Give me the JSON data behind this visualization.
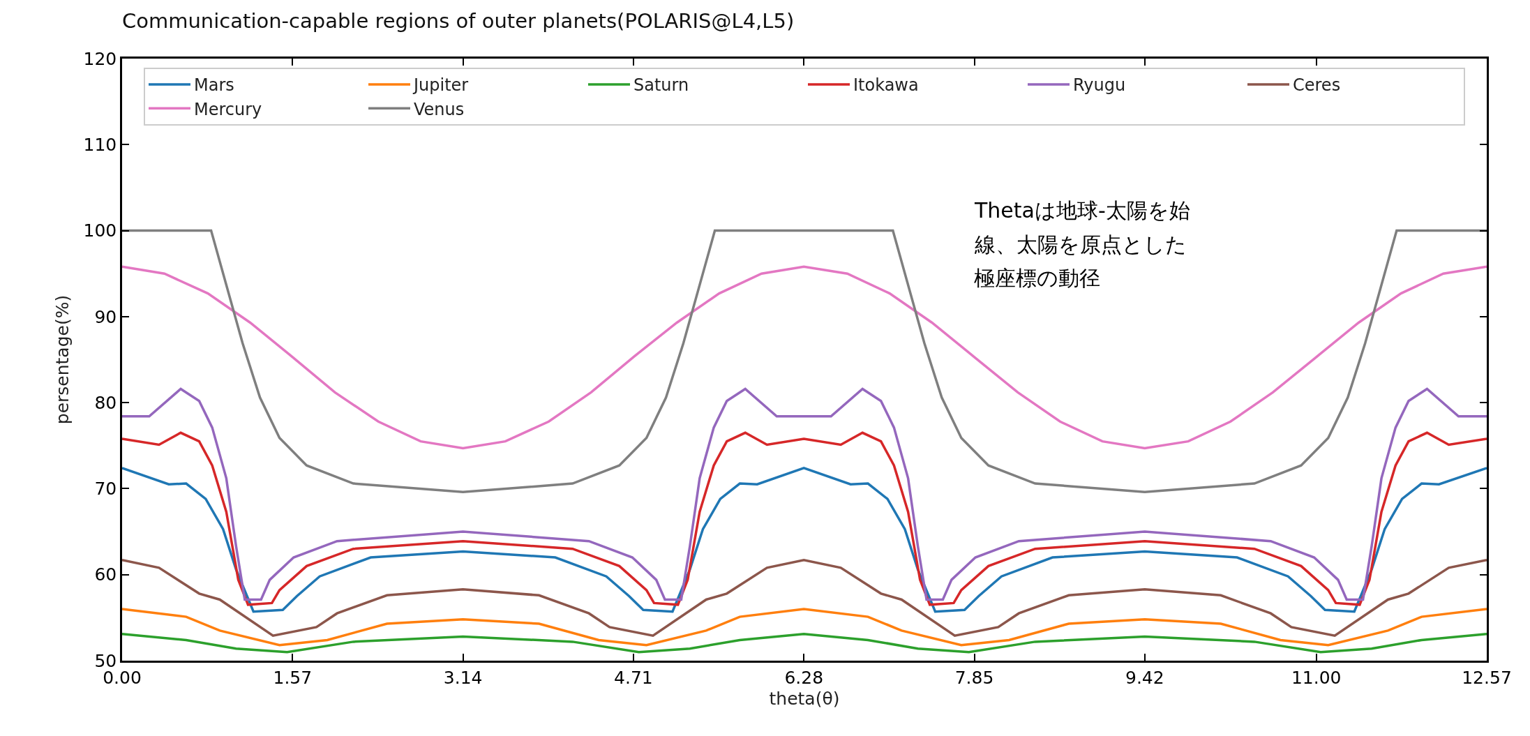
{
  "chart_data": {
    "type": "line",
    "title": "Communication-capable regions of outer planets(POLARIS@L4,L5)",
    "xlabel": "theta(θ)",
    "ylabel": "persentage(%)",
    "xlim": [
      0,
      12.57
    ],
    "xticks": [
      {
        "value": 0,
        "label": "0.00"
      },
      1.57,
      3.14,
      4.71,
      6.28,
      7.85,
      9.42,
      {
        "value": 11,
        "label": "11.00"
      },
      12.57
    ],
    "ylim": [
      50,
      120
    ],
    "yticks": [
      50,
      60,
      70,
      80,
      90,
      100,
      110,
      120
    ],
    "grid": false,
    "legend": "top",
    "marker": "none",
    "line_style": "solid",
    "annotations": [
      "Thetaは地球-太陽を始",
      "線、太陽を原点とした",
      "極座標の動径"
    ],
    "series": [
      {
        "name": "Mars",
        "color": "#1f77b4",
        "x": [
          0,
          0.43,
          0.59,
          0.77,
          0.93,
          1.05,
          1.21,
          1.48,
          1.61,
          1.82,
          2.29,
          3.14,
          3.99,
          4.46,
          4.67,
          4.8,
          5.07,
          5.23,
          5.35,
          5.51,
          5.69,
          5.85,
          6.28,
          6.71,
          6.87,
          7.05,
          7.21,
          7.33,
          7.49,
          7.76,
          7.89,
          8.1,
          8.57,
          9.42,
          10.27,
          10.74,
          10.95,
          11.08,
          11.35,
          11.51,
          11.63,
          11.79,
          11.97,
          12.13,
          12.57
        ],
        "values": [
          72.4,
          70.5,
          70.6,
          68.8,
          65.3,
          60.6,
          55.7,
          55.9,
          57.5,
          59.8,
          62.0,
          62.7,
          62.0,
          59.8,
          57.5,
          55.9,
          55.7,
          60.6,
          65.3,
          68.8,
          70.6,
          70.5,
          72.4,
          70.5,
          70.6,
          68.8,
          65.3,
          60.6,
          55.7,
          55.9,
          57.5,
          59.8,
          62.0,
          62.7,
          62.0,
          59.8,
          57.5,
          55.9,
          55.7,
          60.6,
          65.3,
          68.8,
          70.6,
          70.5,
          72.4
        ]
      },
      {
        "name": "Jupiter",
        "color": "#ff7f0e",
        "x": [
          0,
          0.59,
          0.9,
          1.45,
          1.89,
          2.44,
          3.14,
          3.84,
          4.39,
          4.83,
          5.38,
          5.69,
          6.28,
          6.87,
          7.18,
          7.73,
          8.17,
          8.72,
          9.42,
          10.12,
          10.67,
          11.11,
          11.66,
          11.97,
          12.57
        ],
        "values": [
          56.0,
          55.1,
          53.5,
          51.8,
          52.4,
          54.3,
          54.8,
          54.3,
          52.4,
          51.8,
          53.5,
          55.1,
          56.0,
          55.1,
          53.5,
          51.8,
          52.4,
          54.3,
          54.8,
          54.3,
          52.4,
          51.8,
          53.5,
          55.1,
          56.0
        ]
      },
      {
        "name": "Saturn",
        "color": "#2ca02c",
        "x": [
          0,
          0.59,
          1.05,
          1.52,
          2.13,
          3.14,
          4.15,
          4.76,
          5.23,
          5.69,
          6.28,
          6.87,
          7.33,
          7.8,
          8.41,
          9.42,
          10.43,
          11.04,
          11.51,
          11.97,
          12.57
        ],
        "values": [
          53.1,
          52.4,
          51.4,
          51.0,
          52.2,
          52.8,
          52.2,
          51.0,
          51.4,
          52.4,
          53.1,
          52.4,
          51.4,
          51.0,
          52.2,
          52.8,
          52.2,
          51.0,
          51.4,
          52.4,
          53.1
        ]
      },
      {
        "name": "Itokawa",
        "color": "#d62728",
        "x": [
          0,
          0.34,
          0.54,
          0.71,
          0.83,
          0.96,
          1.07,
          1.16,
          1.38,
          1.45,
          1.7,
          2.13,
          3.14,
          4.15,
          4.58,
          4.83,
          4.9,
          5.12,
          5.21,
          5.32,
          5.45,
          5.57,
          5.74,
          5.94,
          6.28,
          6.62,
          6.82,
          6.99,
          7.11,
          7.24,
          7.35,
          7.44,
          7.66,
          7.73,
          7.98,
          8.41,
          9.42,
          10.43,
          10.86,
          11.11,
          11.18,
          11.4,
          11.49,
          11.6,
          11.73,
          11.85,
          12.02,
          12.22,
          12.57
        ],
        "values": [
          75.8,
          75.1,
          76.5,
          75.5,
          72.7,
          67.3,
          59.4,
          56.5,
          56.7,
          58.2,
          61.0,
          63.0,
          63.9,
          63.0,
          61.0,
          58.2,
          56.7,
          56.5,
          59.4,
          67.3,
          72.7,
          75.5,
          76.5,
          75.1,
          75.8,
          75.1,
          76.5,
          75.5,
          72.7,
          67.3,
          59.4,
          56.5,
          56.7,
          58.2,
          61.0,
          63.0,
          63.9,
          63.0,
          61.0,
          58.2,
          56.7,
          56.5,
          59.4,
          67.3,
          72.7,
          75.5,
          76.5,
          75.1,
          75.8
        ]
      },
      {
        "name": "Ryugu",
        "color": "#9467bd",
        "x": [
          0,
          0.25,
          0.54,
          0.71,
          0.83,
          0.96,
          1.05,
          1.13,
          1.28,
          1.36,
          1.58,
          1.98,
          3.14,
          4.3,
          4.7,
          4.92,
          5.0,
          5.15,
          5.23,
          5.32,
          5.45,
          5.57,
          5.74,
          6.03,
          6.28,
          6.53,
          6.82,
          6.99,
          7.11,
          7.24,
          7.33,
          7.41,
          7.56,
          7.64,
          7.86,
          8.26,
          9.42,
          10.58,
          10.98,
          11.2,
          11.28,
          11.43,
          11.51,
          11.6,
          11.73,
          11.85,
          12.02,
          12.31,
          12.57
        ],
        "values": [
          78.4,
          78.4,
          81.6,
          80.2,
          77.1,
          71.2,
          63.3,
          57.1,
          57.1,
          59.4,
          62.0,
          63.9,
          65.0,
          63.9,
          62.0,
          59.4,
          57.1,
          57.1,
          63.3,
          71.2,
          77.1,
          80.2,
          81.6,
          78.4,
          78.4,
          78.4,
          81.6,
          80.2,
          77.1,
          71.2,
          63.3,
          57.1,
          57.1,
          59.4,
          62.0,
          63.9,
          65.0,
          63.9,
          62.0,
          59.4,
          57.1,
          57.1,
          63.3,
          71.2,
          77.1,
          80.2,
          81.6,
          78.4,
          78.4
        ]
      },
      {
        "name": "Ceres",
        "color": "#8c564b",
        "x": [
          0,
          0.34,
          0.71,
          0.9,
          1.39,
          1.79,
          1.98,
          2.44,
          3.14,
          3.84,
          4.3,
          4.49,
          4.89,
          5.38,
          5.57,
          5.94,
          6.28,
          6.62,
          6.99,
          7.18,
          7.67,
          8.07,
          8.26,
          8.72,
          9.42,
          10.12,
          10.58,
          10.77,
          11.17,
          11.66,
          11.85,
          12.22,
          12.57
        ],
        "values": [
          61.7,
          60.8,
          57.8,
          57.1,
          52.9,
          53.9,
          55.5,
          57.6,
          58.3,
          57.6,
          55.5,
          53.9,
          52.9,
          57.1,
          57.8,
          60.8,
          61.7,
          60.8,
          57.8,
          57.1,
          52.9,
          53.9,
          55.5,
          57.6,
          58.3,
          57.6,
          55.5,
          53.9,
          52.9,
          57.1,
          57.8,
          60.8,
          61.7
        ]
      },
      {
        "name": "Mercury",
        "color": "#e377c2",
        "x": [
          0,
          0.39,
          0.79,
          1.18,
          1.57,
          1.96,
          2.36,
          2.75,
          3.14,
          3.53,
          3.93,
          4.32,
          4.71,
          5.11,
          5.5,
          5.89,
          6.28,
          6.68,
          7.07,
          7.46,
          7.85,
          8.25,
          8.64,
          9.03,
          9.42,
          9.82,
          10.21,
          10.6,
          11.0,
          11.39,
          11.78,
          12.17,
          12.57
        ],
        "values": [
          95.8,
          95.0,
          92.7,
          89.3,
          85.3,
          81.2,
          77.8,
          75.5,
          74.7,
          75.5,
          77.8,
          81.2,
          85.3,
          89.3,
          92.7,
          95.0,
          95.8,
          95.0,
          92.7,
          89.3,
          85.3,
          81.2,
          77.8,
          75.5,
          74.7,
          75.5,
          77.8,
          81.2,
          85.3,
          89.3,
          92.7,
          95.0,
          95.8
        ]
      },
      {
        "name": "Venus",
        "color": "#7f7f7f",
        "x": [
          0,
          0.82,
          1.11,
          1.27,
          1.45,
          1.7,
          2.13,
          3.14,
          4.15,
          4.58,
          4.83,
          5.01,
          5.17,
          5.46,
          6.28,
          7.1,
          7.39,
          7.55,
          7.73,
          7.98,
          8.41,
          9.42,
          10.43,
          10.86,
          11.11,
          11.29,
          11.45,
          11.74,
          12.57
        ],
        "values": [
          100,
          100,
          86.9,
          80.6,
          75.9,
          72.7,
          70.6,
          69.6,
          70.6,
          72.7,
          75.9,
          80.6,
          86.9,
          100,
          100,
          100,
          86.9,
          80.6,
          75.9,
          72.7,
          70.6,
          69.6,
          70.6,
          72.7,
          75.9,
          80.6,
          86.9,
          100,
          100
        ]
      }
    ]
  }
}
